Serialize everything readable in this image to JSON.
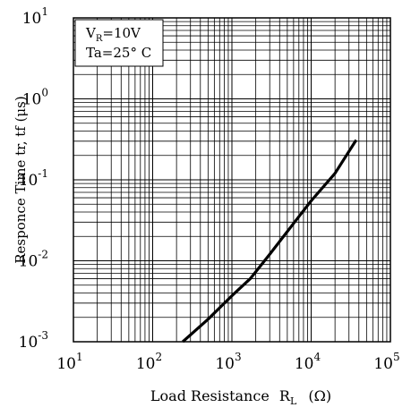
{
  "chart_data": {
    "type": "line",
    "xlabel": {
      "text": "Load Resistance",
      "symbol": "R",
      "symbol_sub": "L",
      "unit": "(Ω)"
    },
    "ylabel": "Responce Time tr, tf  (μs)",
    "x_scale": "log",
    "y_scale": "log",
    "xlim": [
      10,
      100000
    ],
    "ylim": [
      0.001,
      10
    ],
    "grid": true,
    "x_ticks": [
      {
        "base": "10",
        "exp": "1",
        "value": 10
      },
      {
        "base": "10",
        "exp": "2",
        "value": 100
      },
      {
        "base": "10",
        "exp": "3",
        "value": 1000
      },
      {
        "base": "10",
        "exp": "4",
        "value": 10000
      },
      {
        "base": "10",
        "exp": "5",
        "value": 100000
      }
    ],
    "y_ticks": [
      {
        "base": "10",
        "exp": "1",
        "value": 10
      },
      {
        "base": "10",
        "exp": "0",
        "value": 1
      },
      {
        "base": "10",
        "exp": "-1",
        "value": 0.1
      },
      {
        "base": "10",
        "exp": "-2",
        "value": 0.01
      },
      {
        "base": "10",
        "exp": "-3",
        "value": 0.001
      }
    ],
    "conditions": {
      "line1_prefix": "V",
      "line1_sub": "R",
      "line1_value": "=10V",
      "line2": "Ta=25° C"
    },
    "series": [
      {
        "x": [
          240,
          500,
          1000,
          1700,
          3000,
          6000,
          10000,
          20000,
          37000
        ],
        "y": [
          0.001,
          0.0019,
          0.0037,
          0.006,
          0.012,
          0.029,
          0.055,
          0.12,
          0.31
        ]
      }
    ]
  }
}
